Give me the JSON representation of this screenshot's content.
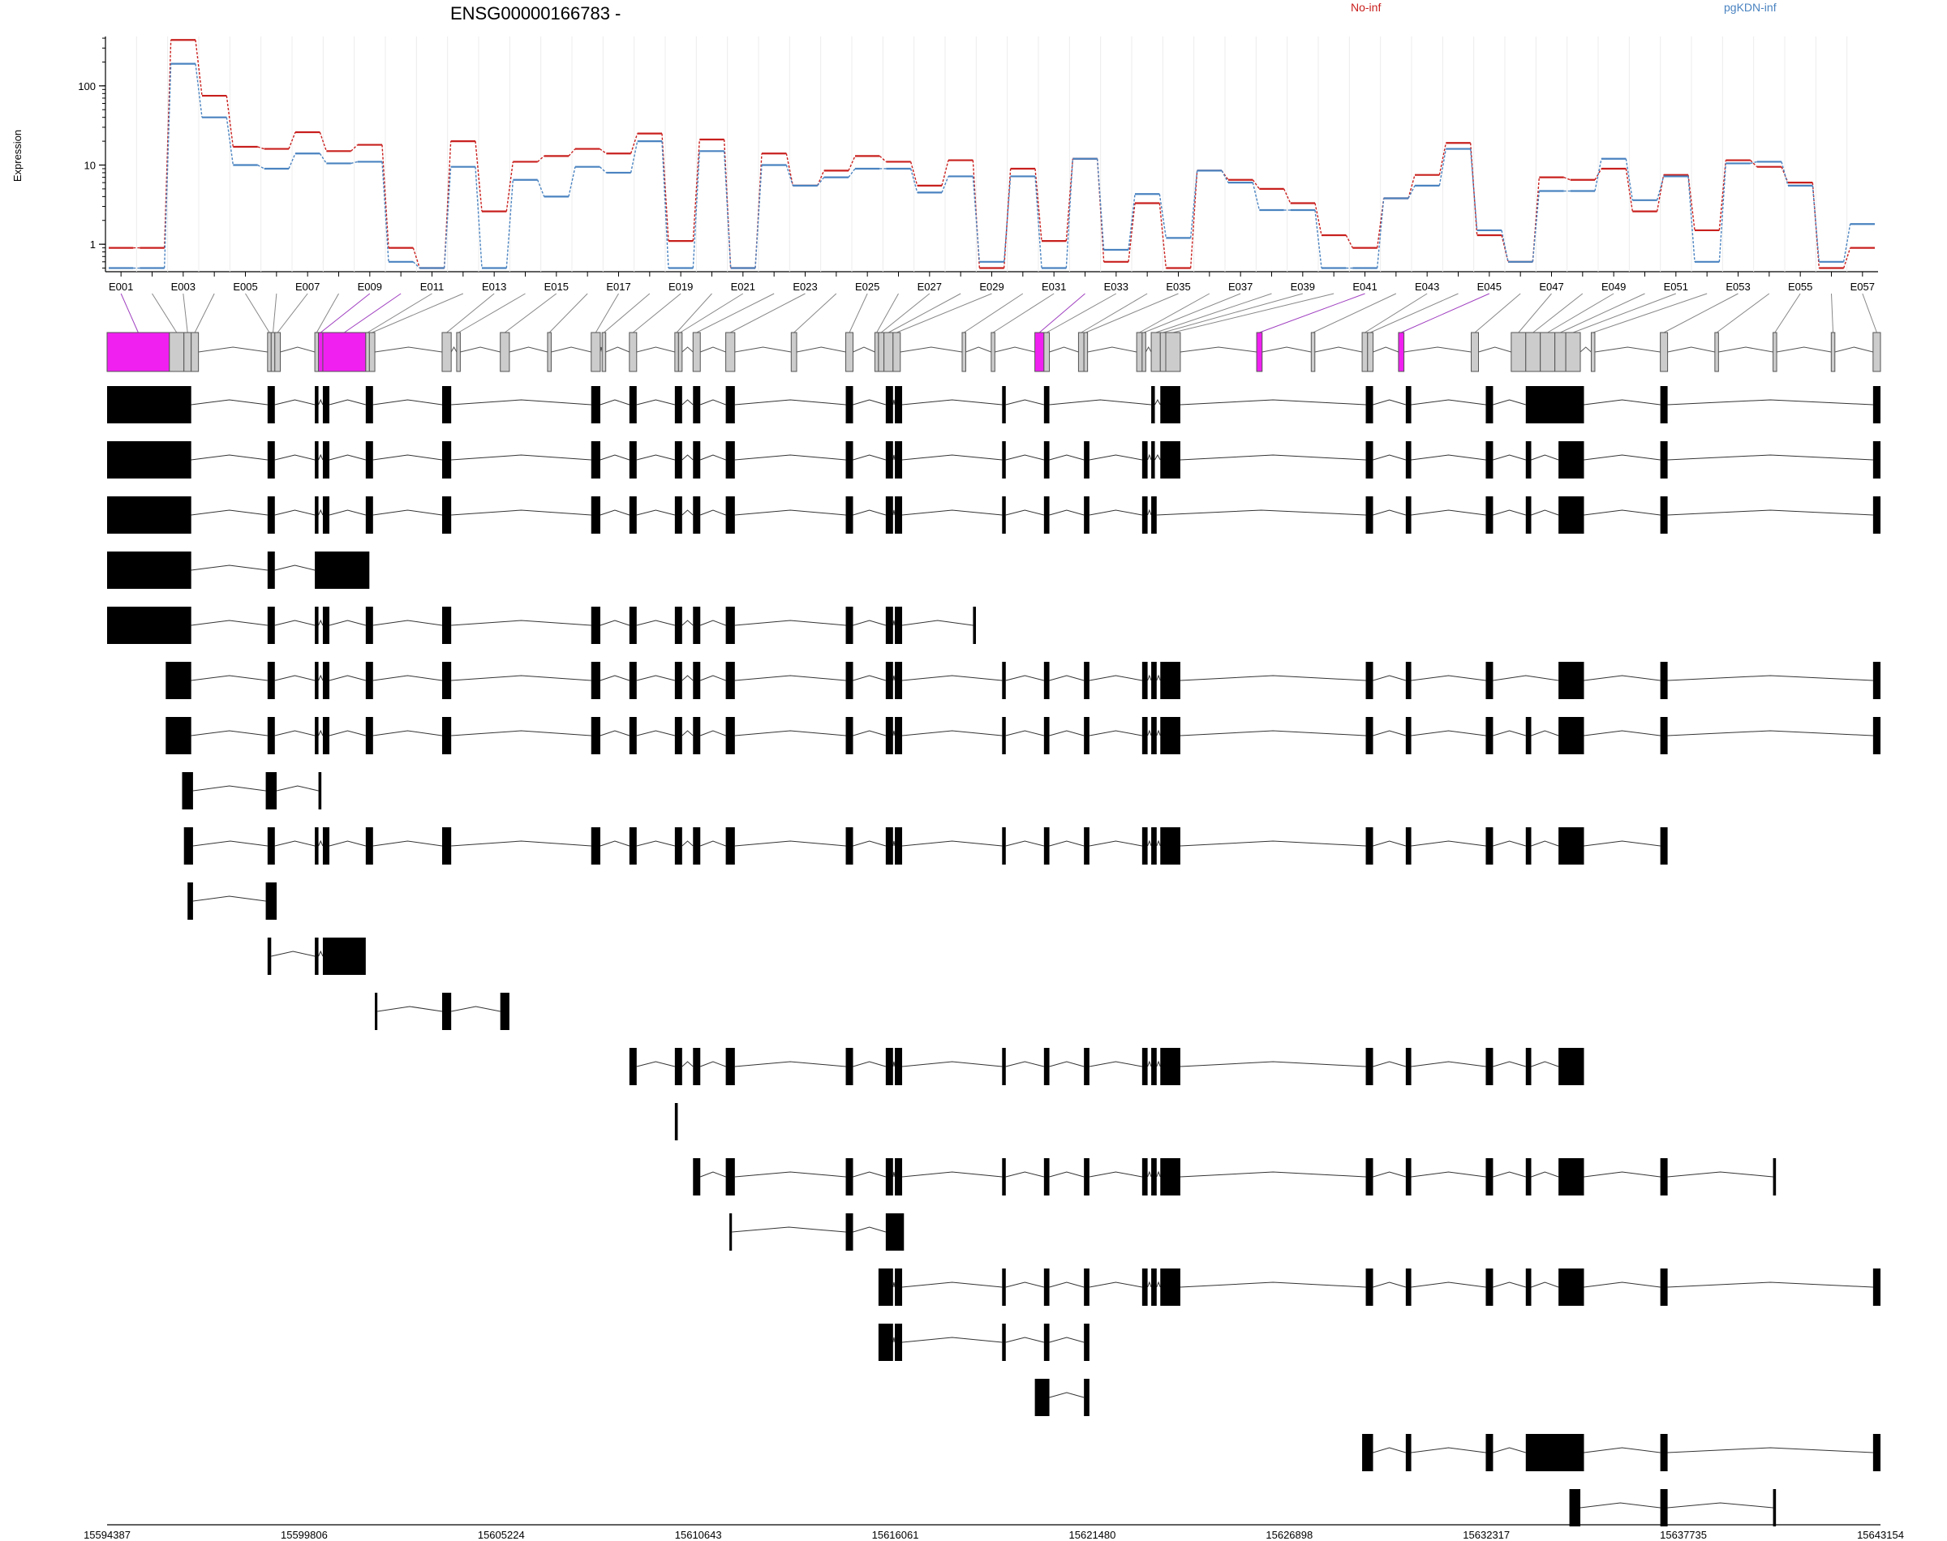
{
  "chart_data": {
    "type": "line",
    "title": "ENSG00000166783 -",
    "ylabel": "Expression",
    "yscale": "log",
    "ylim": [
      0.45,
      420
    ],
    "yticks": [
      1,
      10,
      100
    ],
    "ytick_labels": [
      "1",
      "10",
      "100"
    ],
    "legend_placement": "top-right",
    "grid": true,
    "exon_labels": [
      "E001",
      "E003",
      "E005",
      "E007",
      "E009",
      "E011",
      "E013",
      "E015",
      "E017",
      "E019",
      "E021",
      "E023",
      "E025",
      "E027",
      "E029",
      "E031",
      "E033",
      "E035",
      "E037",
      "E039",
      "E041",
      "E043",
      "E045",
      "E047",
      "E049",
      "E051",
      "E053",
      "E055",
      "E057"
    ],
    "series": [
      {
        "name": "No-inf",
        "color": "#c8201e",
        "values": [
          0.9,
          0.9,
          380,
          75,
          17,
          16,
          26,
          15,
          18,
          0.9,
          0.5,
          20,
          2.6,
          11,
          13,
          16,
          14,
          25,
          1.1,
          21,
          0.5,
          14,
          5.5,
          8.5,
          13,
          11,
          5.5,
          11.5,
          0.5,
          9,
          1.1,
          12,
          0.6,
          3.3,
          0.5,
          8.5,
          6.5,
          5,
          3.3,
          1.3,
          0.9,
          3.8,
          7.5,
          19,
          1.3,
          0.6,
          7,
          6.5,
          9,
          2.6,
          7.5,
          1.5,
          11.5,
          9.5,
          6,
          0.5,
          0.9
        ]
      },
      {
        "name": "pgKDN-inf",
        "color": "#4a83c0",
        "values": [
          0.5,
          0.5,
          190,
          40,
          10,
          9,
          14,
          10.5,
          11,
          0.6,
          0.5,
          9.5,
          0.5,
          6.5,
          4,
          9.5,
          8,
          20,
          0.5,
          15,
          0.5,
          10,
          5.5,
          7,
          9,
          9,
          4.5,
          7.2,
          0.6,
          7.2,
          0.5,
          12,
          0.85,
          4.3,
          1.2,
          8.5,
          6,
          2.7,
          2.7,
          0.5,
          0.5,
          3.8,
          5.5,
          16,
          1.5,
          0.6,
          4.7,
          4.7,
          12,
          3.6,
          7.2,
          0.6,
          10.5,
          11,
          5.5,
          0.6,
          1.8
        ]
      }
    ],
    "highlight_color": "#f020f0",
    "exon_color": "#cccccc",
    "transcript_exon_color": "#000000",
    "genomic_axis": {
      "ticks": [
        15594387,
        15599806,
        15605224,
        15610643,
        15616061,
        15621480,
        15626898,
        15632317,
        15637735,
        15643154
      ],
      "tick_labels": [
        "15594387",
        "15599806",
        "15605224",
        "15610643",
        "15616061",
        "15621480",
        "15626898",
        "15632317",
        "15637735",
        "15643154"
      ]
    }
  }
}
